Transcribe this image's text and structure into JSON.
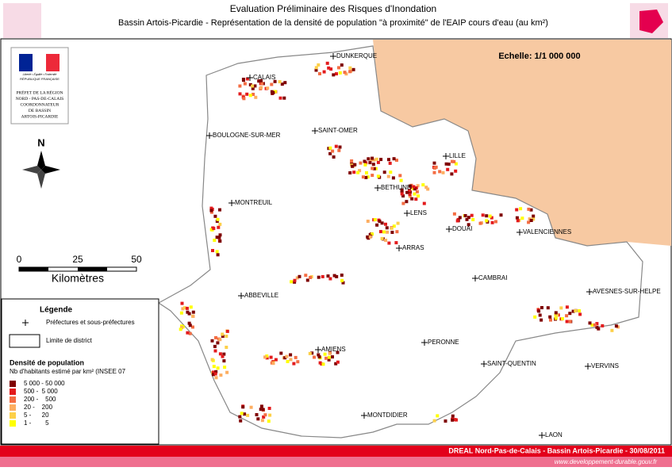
{
  "header": {
    "title": "Evaluation Préliminaire des Risques d'Inondation",
    "subtitle": "Bassin Artois-Picardie - Représentation de la densité de population \"à proximité\" de l'EAIP cours d'eau (au km²)"
  },
  "logo": {
    "motto": "Liberté • Égalité • Fraternité",
    "republic": "RÉPUBLIQUE FRANÇAISE",
    "prefet": [
      "PRÉFET DE LA RÉGION",
      "NORD - PAS-DE-CALAIS",
      "COORDONNATEUR",
      "DE BASSIN",
      "ARTOIS-PICARDIE"
    ]
  },
  "scale_text": "Echelle: 1/1 000 000",
  "north": "N",
  "scale_bar": {
    "ticks": [
      "0",
      "25",
      "50"
    ],
    "unit": "Kilomètres"
  },
  "legend": {
    "title": "Légende",
    "prefectures": "Préfectures et sous-préfectures",
    "district": "Limite de district",
    "density_title": "Densité de population",
    "density_subtitle": "Nb d'habitants estimé par km² (INSEE 07",
    "classes": [
      {
        "label": "5 000 - 50 000",
        "color": "#7f0000"
      },
      {
        "label": "500 -  5 000",
        "color": "#e31a1c"
      },
      {
        "label": "200 -    500",
        "color": "#f46d43"
      },
      {
        "label": "20 -    200",
        "color": "#fdae61"
      },
      {
        "label": "5 -      20",
        "color": "#fdd049"
      },
      {
        "label": "1 -        5",
        "color": "#ffff00"
      }
    ]
  },
  "cities": [
    "DUNKERQUE",
    "CALAIS",
    "SAINT-OMER",
    "BOULOGNE-SUR-MER",
    "LILLE",
    "BETHUNE",
    "LENS",
    "MONTREUIL",
    "DOUAI",
    "VALENCIENNES",
    "ARRAS",
    "CAMBRAI",
    "AVESNES-SUR-HELPE",
    "ABBEVILLE",
    "PERONNE",
    "AMIENS",
    "SAINT-QUENTIN",
    "VERVINS",
    "MONTDIDIER",
    "LAON"
  ],
  "footer": {
    "credit": "DREAL Nord-Pas-de-Calais - Bassin Artois-Picardie - 30/08/2011",
    "url": "www.developpement-durable.gouv.fr"
  }
}
